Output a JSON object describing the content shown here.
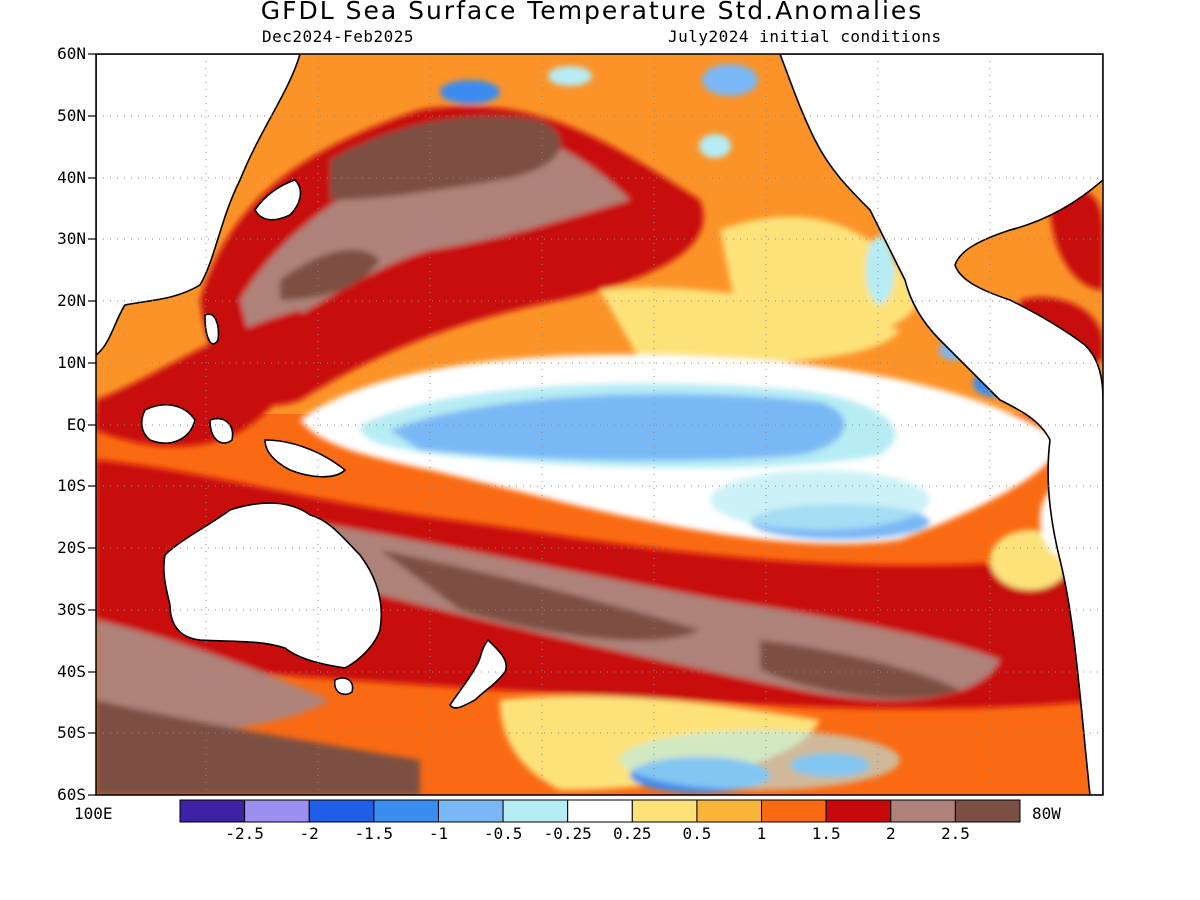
{
  "map": {
    "title": "GFDL Sea Surface Temperature Std.Anomalies",
    "subtitle_left": "Dec2024-Feb2025",
    "subtitle_right": "July2024 initial conditions",
    "lat_labels": [
      "60N",
      "50N",
      "40N",
      "30N",
      "20N",
      "10N",
      "EQ",
      "10S",
      "20S",
      "30S",
      "40S",
      "50S",
      "60S"
    ],
    "lon_left": "100E",
    "lon_right": "80W"
  },
  "colorbar": {
    "colors": [
      "#3d22a6",
      "#9d8ff0",
      "#1f5ee6",
      "#3a8cf0",
      "#7ab8f5",
      "#b6ecf4",
      "#ffffff",
      "#fde27a",
      "#fbb43a",
      "#fa6a12",
      "#c8090c",
      "#ae8278",
      "#7b4f43"
    ],
    "labels": [
      "-2.5",
      "-2",
      "-1.5",
      "-1",
      "-0.5",
      "-0.25",
      "0.25",
      "0.5",
      "1",
      "1.5",
      "2",
      "2.5"
    ]
  },
  "legend_meaning": {
    "warm": "positive anomalies (orange-red-brown)",
    "cool": "negative anomalies (blue)"
  }
}
